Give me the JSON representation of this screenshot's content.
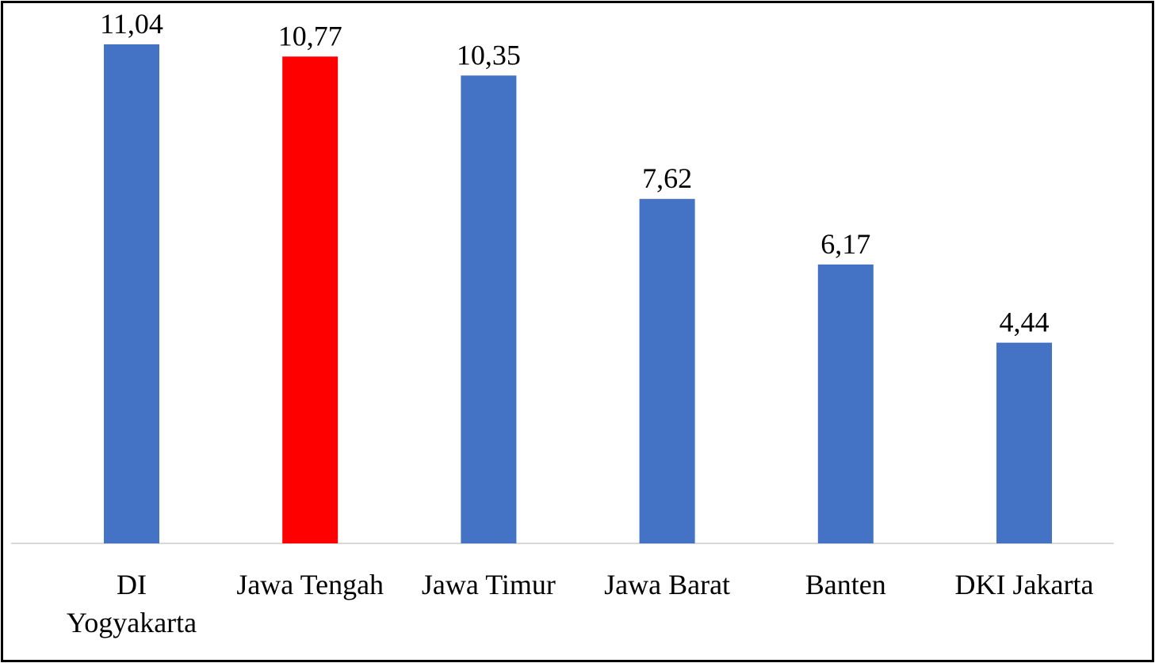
{
  "chart_data": {
    "type": "bar",
    "title": "",
    "xlabel": "",
    "ylabel": "",
    "ylim": [
      0,
      11.6
    ],
    "grid": false,
    "legend": "none",
    "categories": [
      "DI Yogyakarta",
      "Jawa Tengah",
      "Jawa Timur",
      "Jawa Barat",
      "Banten",
      "DKI Jakarta"
    ],
    "category_lines": [
      [
        "DI",
        "Yogyakarta"
      ],
      [
        "Jawa Tengah"
      ],
      [
        "Jawa Timur"
      ],
      [
        "Jawa Barat"
      ],
      [
        "Banten"
      ],
      [
        "DKI Jakarta"
      ]
    ],
    "values": [
      11.04,
      10.77,
      10.35,
      7.62,
      6.17,
      4.44
    ],
    "value_labels": [
      "11,04",
      "10,77",
      "10,35",
      "7,62",
      "6,17",
      "4,44"
    ],
    "colors": [
      "#4472c4",
      "#ff0000",
      "#4472c4",
      "#4472c4",
      "#4472c4",
      "#4472c4"
    ]
  }
}
